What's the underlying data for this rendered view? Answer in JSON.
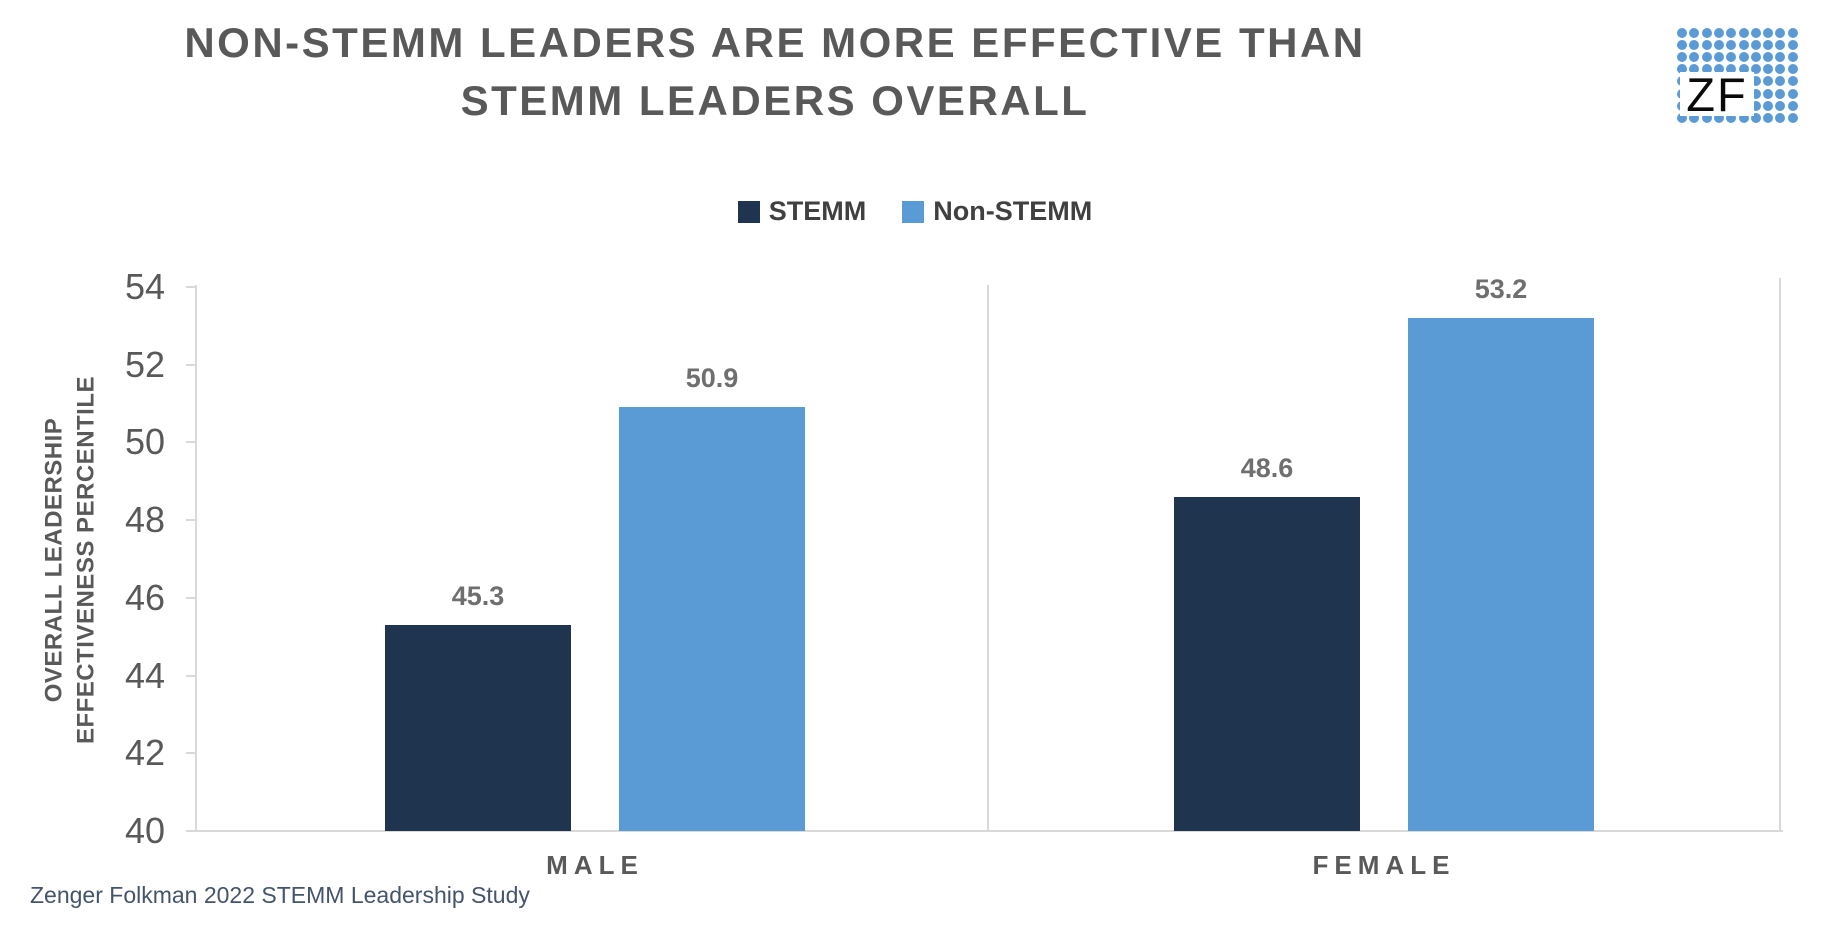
{
  "title": {
    "line1": "NON-STEMM LEADERS ARE MORE EFFECTIVE THAN",
    "line2": "STEMM LEADERS OVERALL"
  },
  "logo": {
    "text": "ZF",
    "dot_color": "#5B9BD5",
    "rows": 8,
    "cols": 10
  },
  "axis": {
    "y_title_line1": "OVERALL LEADERSHIP",
    "y_title_line2": "EFFECTIVENESS PERCENTILE"
  },
  "colors": {
    "stemm": "#1F344F",
    "non_stemm": "#5B9BD5",
    "axis_line": "#D9D9D9",
    "heading_gray": "#595959",
    "value_label_gray": "#6F6F6F",
    "legend_text": "#404040",
    "footnote_blue": "#44546A"
  },
  "chart_data": {
    "type": "bar",
    "title": "NON-STEMM LEADERS ARE MORE EFFECTIVE THAN STEMM LEADERS OVERALL",
    "categories": [
      "MALE",
      "FEMALE"
    ],
    "series": [
      {
        "name": "STEMM",
        "color": "#1F344F",
        "values": [
          45.3,
          48.6
        ]
      },
      {
        "name": "Non-STEMM",
        "color": "#5B9BD5",
        "values": [
          50.9,
          53.2
        ]
      }
    ],
    "ylabel": "OVERALL LEADERSHIP EFFECTIVENESS PERCENTILE",
    "ylim": [
      40,
      54
    ],
    "yticks": [
      40,
      42,
      44,
      46,
      48,
      50,
      52,
      54
    ],
    "grid": false,
    "legend_position": "top-center",
    "value_labels": true,
    "source": "Zenger Folkman 2022 STEMM Leadership Study"
  }
}
